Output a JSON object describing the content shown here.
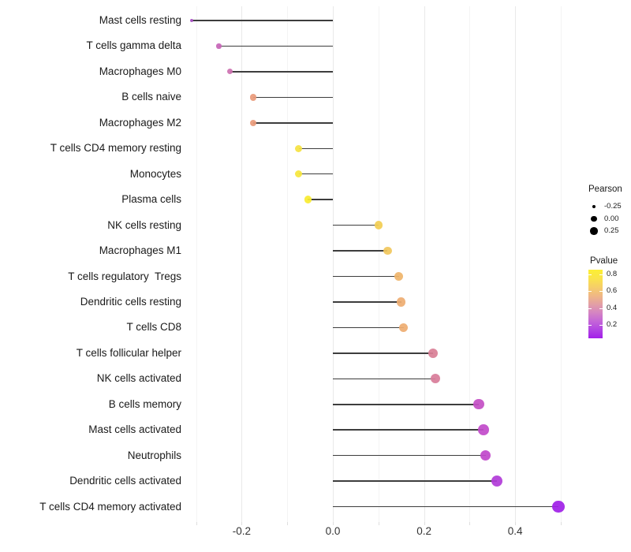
{
  "chart_data": {
    "type": "lollipop",
    "orientation": "horizontal",
    "title": "",
    "xlabel": "",
    "ylabel": "",
    "xlim": [
      -0.33,
      0.52
    ],
    "grid": "vertical only, very light, major + minor",
    "x_ticks": [
      -0.2,
      0.0,
      0.2,
      0.4
    ],
    "x_tick_labels": [
      "-0.2",
      "0.0",
      "0.2",
      "0.4"
    ],
    "x_minor_ticks": [
      -0.3,
      -0.1,
      0.1,
      0.3,
      0.5
    ],
    "categories": [
      "Mast cells resting",
      "T cells gamma delta",
      "Macrophages M0",
      "B cells naive",
      "Macrophages M2",
      "T cells CD4 memory resting",
      "Monocytes",
      "Plasma cells",
      "NK cells resting",
      "Macrophages M1",
      "T cells regulatory  Tregs",
      "Dendritic cells resting",
      "T cells CD8",
      "T cells follicular helper",
      "NK cells activated",
      "B cells memory",
      "Mast cells activated",
      "Neutrophils",
      "Dendritic cells activated",
      "T cells CD4 memory activated"
    ],
    "points": [
      {
        "label": "Mast cells resting",
        "pearson": -0.31,
        "pvalue": 0.28,
        "color": "#a850c4",
        "radius": 2.0
      },
      {
        "label": "T cells gamma delta",
        "pearson": -0.25,
        "pvalue": 0.33,
        "color": "#c766b8",
        "radius": 3.2
      },
      {
        "label": "Macrophages M0",
        "pearson": -0.225,
        "pvalue": 0.36,
        "color": "#cd72b2",
        "radius": 3.5
      },
      {
        "label": "B cells naive",
        "pearson": -0.175,
        "pvalue": 0.52,
        "color": "#e99b7b",
        "radius": 4.2
      },
      {
        "label": "Macrophages M2",
        "pearson": -0.175,
        "pvalue": 0.52,
        "color": "#e99b7b",
        "radius": 4.2
      },
      {
        "label": "T cells CD4 memory resting",
        "pearson": -0.075,
        "pvalue": 0.77,
        "color": "#f5e243",
        "radius": 4.6
      },
      {
        "label": "Monocytes",
        "pearson": -0.075,
        "pvalue": 0.78,
        "color": "#f6e63c",
        "radius": 4.6
      },
      {
        "label": "Plasma cells",
        "pearson": -0.055,
        "pvalue": 0.81,
        "color": "#f9ec32",
        "radius": 4.7
      },
      {
        "label": "NK cells resting",
        "pearson": 0.1,
        "pvalue": 0.7,
        "color": "#f2ce53",
        "radius": 5.3
      },
      {
        "label": "Macrophages M1",
        "pearson": 0.12,
        "pvalue": 0.67,
        "color": "#f1c75e",
        "radius": 5.4
      },
      {
        "label": "T cells regulatory  Tregs",
        "pearson": 0.145,
        "pvalue": 0.61,
        "color": "#efb56c",
        "radius": 5.6
      },
      {
        "label": "Dendritic cells resting",
        "pearson": 0.15,
        "pvalue": 0.58,
        "color": "#eead72",
        "radius": 5.7
      },
      {
        "label": "T cells CD8",
        "pearson": 0.155,
        "pvalue": 0.58,
        "color": "#eead72",
        "radius": 5.7
      },
      {
        "label": "T cells follicular helper",
        "pearson": 0.22,
        "pvalue": 0.42,
        "color": "#d98097",
        "radius": 6.1
      },
      {
        "label": "NK cells activated",
        "pearson": 0.225,
        "pvalue": 0.42,
        "color": "#d87d9a",
        "radius": 6.1
      },
      {
        "label": "B cells memory",
        "pearson": 0.32,
        "pvalue": 0.21,
        "color": "#c450c5",
        "radius": 6.7
      },
      {
        "label": "Mast cells activated",
        "pearson": 0.33,
        "pvalue": 0.2,
        "color": "#c24bca",
        "radius": 6.8
      },
      {
        "label": "Neutrophils",
        "pearson": 0.335,
        "pvalue": 0.2,
        "color": "#c149cb",
        "radius": 6.8
      },
      {
        "label": "Dendritic cells activated",
        "pearson": 0.36,
        "pvalue": 0.15,
        "color": "#b23cd8",
        "radius": 7.0
      },
      {
        "label": "T cells CD4 memory activated",
        "pearson": 0.495,
        "pvalue": 0.07,
        "color": "#a021e7",
        "radius": 7.7
      }
    ],
    "legend": {
      "position": "right",
      "size": {
        "title": "Pearson",
        "items": [
          {
            "label": "-0.25",
            "radius": 2.2
          },
          {
            "label": "0.00",
            "radius": 3.6
          },
          {
            "label": "0.25",
            "radius": 4.7
          }
        ]
      },
      "color": {
        "title": "Pvalue",
        "tick_labels": [
          "0.8",
          "0.6",
          "0.4",
          "0.2"
        ],
        "gradient_top_to_bottom": [
          "#fcef34",
          "#fae44a",
          "#f6cf68",
          "#f0b884",
          "#e3a0a4",
          "#d585c2",
          "#c466d8",
          "#b244e2",
          "#a21ee9"
        ]
      }
    },
    "colors": {
      "stem": "#3d3d3d",
      "grid_major": "#e9e9e9",
      "grid_minor": "#f4f4f4",
      "axis_text": "#333333",
      "category_text": "#1a1a1a",
      "background": "#ffffff"
    }
  }
}
